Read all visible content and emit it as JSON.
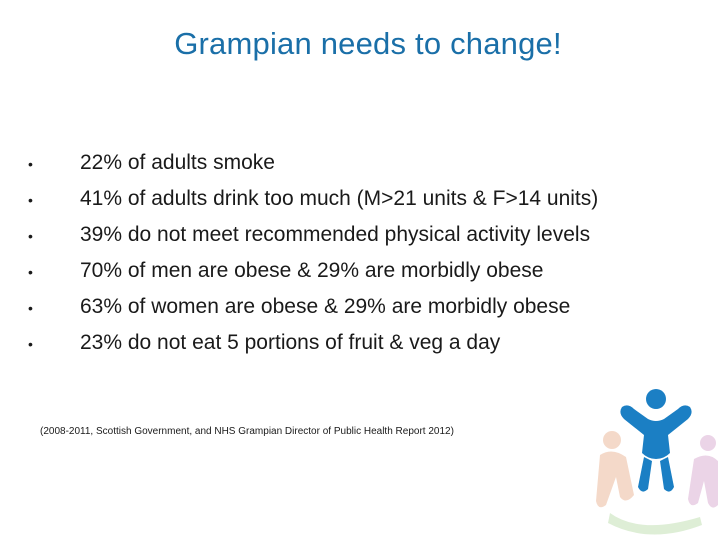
{
  "slide": {
    "title": "Grampian needs to change!",
    "bullet_glyph": "•",
    "bullets": [
      "22% of adults smoke",
      "41% of adults drink too much (M>21 units & F>14 units)",
      "39% do not meet recommended physical activity levels",
      "70% of men are obese & 29% are morbidly obese",
      "63% of women are obese & 29% are morbidly obese",
      "23% do not eat 5 portions of fruit & veg a day"
    ],
    "source": "(2008-2011, Scottish Government, and NHS Grampian Director of Public Health Report 2012)"
  },
  "colors": {
    "title": "#1a6fa8",
    "body_text": "#1a1a1a",
    "logo_blue": "#1b7fc4",
    "logo_pale": "#f3d3c0"
  },
  "icons": {
    "logo": "people-figures-logo-icon"
  }
}
